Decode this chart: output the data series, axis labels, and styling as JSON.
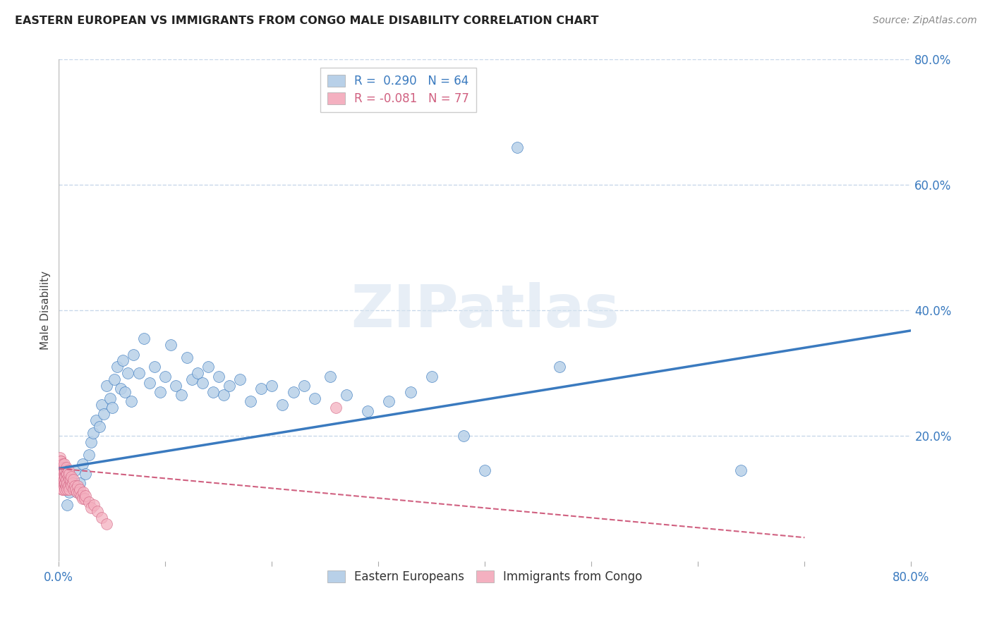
{
  "title": "EASTERN EUROPEAN VS IMMIGRANTS FROM CONGO MALE DISABILITY CORRELATION CHART",
  "source": "Source: ZipAtlas.com",
  "xlabel": "",
  "ylabel": "Male Disability",
  "watermark": "ZIPatlas",
  "legend1_label": "Eastern Europeans",
  "legend2_label": "Immigrants from Congo",
  "r1": 0.29,
  "n1": 64,
  "r2": -0.081,
  "n2": 77,
  "xlim": [
    0.0,
    0.8
  ],
  "ylim": [
    0.0,
    0.8
  ],
  "xticks": [
    0.0,
    0.1,
    0.2,
    0.3,
    0.4,
    0.5,
    0.6,
    0.7,
    0.8
  ],
  "xtick_labels": [
    "0.0%",
    "",
    "",
    "",
    "",
    "",
    "",
    "",
    "80.0%"
  ],
  "yticks_right": [
    0.2,
    0.4,
    0.6,
    0.8
  ],
  "color_blue": "#b8d0e8",
  "color_blue_line": "#3a7abf",
  "color_pink": "#f4b0c0",
  "color_pink_line": "#d06080",
  "background_color": "#ffffff",
  "grid_color": "#c8d8ea",
  "blue_scatter_x": [
    0.005,
    0.008,
    0.01,
    0.012,
    0.015,
    0.018,
    0.02,
    0.022,
    0.025,
    0.028,
    0.03,
    0.032,
    0.035,
    0.038,
    0.04,
    0.042,
    0.045,
    0.048,
    0.05,
    0.052,
    0.055,
    0.058,
    0.06,
    0.062,
    0.065,
    0.068,
    0.07,
    0.075,
    0.08,
    0.085,
    0.09,
    0.095,
    0.1,
    0.105,
    0.11,
    0.115,
    0.12,
    0.125,
    0.13,
    0.135,
    0.14,
    0.145,
    0.15,
    0.155,
    0.16,
    0.17,
    0.18,
    0.19,
    0.2,
    0.21,
    0.22,
    0.23,
    0.24,
    0.255,
    0.27,
    0.29,
    0.31,
    0.33,
    0.35,
    0.38,
    0.4,
    0.43,
    0.47,
    0.64
  ],
  "blue_scatter_y": [
    0.13,
    0.09,
    0.11,
    0.13,
    0.145,
    0.11,
    0.125,
    0.155,
    0.14,
    0.17,
    0.19,
    0.205,
    0.225,
    0.215,
    0.25,
    0.235,
    0.28,
    0.26,
    0.245,
    0.29,
    0.31,
    0.275,
    0.32,
    0.27,
    0.3,
    0.255,
    0.33,
    0.3,
    0.355,
    0.285,
    0.31,
    0.27,
    0.295,
    0.345,
    0.28,
    0.265,
    0.325,
    0.29,
    0.3,
    0.285,
    0.31,
    0.27,
    0.295,
    0.265,
    0.28,
    0.29,
    0.255,
    0.275,
    0.28,
    0.25,
    0.27,
    0.28,
    0.26,
    0.295,
    0.265,
    0.24,
    0.255,
    0.27,
    0.295,
    0.2,
    0.145,
    0.66,
    0.31,
    0.145
  ],
  "pink_scatter_x": [
    0.001,
    0.001,
    0.001,
    0.001,
    0.001,
    0.001,
    0.002,
    0.002,
    0.002,
    0.002,
    0.002,
    0.002,
    0.002,
    0.003,
    0.003,
    0.003,
    0.003,
    0.003,
    0.003,
    0.003,
    0.004,
    0.004,
    0.004,
    0.004,
    0.004,
    0.004,
    0.004,
    0.005,
    0.005,
    0.005,
    0.005,
    0.005,
    0.005,
    0.005,
    0.006,
    0.006,
    0.006,
    0.006,
    0.006,
    0.007,
    0.007,
    0.007,
    0.007,
    0.008,
    0.008,
    0.008,
    0.009,
    0.009,
    0.009,
    0.01,
    0.01,
    0.01,
    0.011,
    0.011,
    0.012,
    0.012,
    0.013,
    0.014,
    0.014,
    0.015,
    0.016,
    0.017,
    0.018,
    0.019,
    0.02,
    0.021,
    0.022,
    0.023,
    0.024,
    0.025,
    0.028,
    0.03,
    0.033,
    0.036,
    0.04,
    0.045,
    0.26
  ],
  "pink_scatter_y": [
    0.14,
    0.165,
    0.12,
    0.155,
    0.13,
    0.145,
    0.14,
    0.16,
    0.125,
    0.15,
    0.135,
    0.12,
    0.16,
    0.14,
    0.125,
    0.15,
    0.13,
    0.145,
    0.115,
    0.135,
    0.14,
    0.125,
    0.155,
    0.13,
    0.145,
    0.115,
    0.14,
    0.13,
    0.15,
    0.12,
    0.14,
    0.125,
    0.155,
    0.13,
    0.14,
    0.125,
    0.145,
    0.115,
    0.135,
    0.14,
    0.12,
    0.15,
    0.13,
    0.14,
    0.125,
    0.115,
    0.135,
    0.12,
    0.145,
    0.13,
    0.14,
    0.115,
    0.125,
    0.13,
    0.12,
    0.135,
    0.125,
    0.115,
    0.13,
    0.12,
    0.115,
    0.11,
    0.12,
    0.11,
    0.115,
    0.105,
    0.1,
    0.11,
    0.1,
    0.105,
    0.095,
    0.085,
    0.09,
    0.08,
    0.07,
    0.06,
    0.245
  ],
  "blue_line_x": [
    0.0,
    0.8
  ],
  "blue_line_y": [
    0.148,
    0.368
  ],
  "pink_line_x": [
    0.0,
    0.7
  ],
  "pink_line_y": [
    0.148,
    0.038
  ]
}
